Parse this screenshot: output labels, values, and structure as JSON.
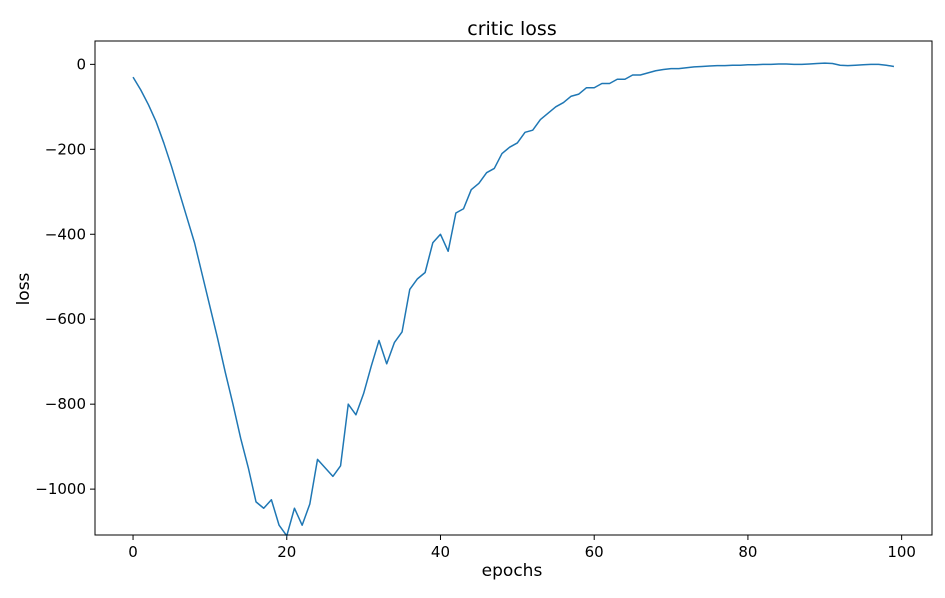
{
  "chart_data": {
    "type": "line",
    "title": "critic loss",
    "xlabel": "epochs",
    "ylabel": "loss",
    "xlim": [
      -4.95,
      103.95
    ],
    "ylim": [
      -1108,
      55
    ],
    "xticks": [
      0,
      20,
      40,
      60,
      80,
      100
    ],
    "yticks": [
      0,
      -200,
      -400,
      -600,
      -800,
      -1000
    ],
    "xtick_labels": [
      "0",
      "20",
      "40",
      "60",
      "80",
      "100"
    ],
    "ytick_labels": [
      "0",
      "−200",
      "−400",
      "−600",
      "−800",
      "−1000"
    ],
    "grid": false,
    "legend": "none",
    "line_color": "#1f77b4",
    "series": [
      {
        "x": [
          0,
          1,
          2,
          3,
          4,
          5,
          6,
          7,
          8,
          9,
          10,
          11,
          12,
          13,
          14,
          15,
          16,
          17,
          18,
          19,
          20,
          21,
          22,
          23,
          24,
          25,
          26,
          27,
          28,
          29,
          30,
          31,
          32,
          33,
          34,
          35,
          36,
          37,
          38,
          39,
          40,
          41,
          42,
          43,
          44,
          45,
          46,
          47,
          48,
          49,
          50,
          51,
          52,
          53,
          54,
          55,
          56,
          57,
          58,
          59,
          60,
          61,
          62,
          63,
          64,
          65,
          66,
          67,
          68,
          69,
          70,
          71,
          72,
          73,
          74,
          75,
          76,
          77,
          78,
          79,
          80,
          81,
          82,
          83,
          84,
          85,
          86,
          87,
          88,
          89,
          90,
          91,
          92,
          93,
          94,
          95,
          96,
          97,
          98,
          99
        ],
        "values": [
          -30,
          -60,
          -95,
          -135,
          -185,
          -240,
          -300,
          -360,
          -420,
          -495,
          -570,
          -645,
          -725,
          -800,
          -880,
          -950,
          -1030,
          -1045,
          -1025,
          -1085,
          -1110,
          -1045,
          -1085,
          -1035,
          -930,
          -950,
          -970,
          -945,
          -800,
          -825,
          -775,
          -710,
          -650,
          -705,
          -655,
          -630,
          -530,
          -505,
          -490,
          -420,
          -400,
          -440,
          -350,
          -340,
          -295,
          -280,
          -255,
          -245,
          -210,
          -195,
          -185,
          -160,
          -155,
          -130,
          -115,
          -100,
          -90,
          -75,
          -70,
          -55,
          -55,
          -45,
          -45,
          -35,
          -35,
          -25,
          -25,
          -20,
          -15,
          -12,
          -10,
          -10,
          -8,
          -6,
          -5,
          -4,
          -3,
          -3,
          -2,
          -2,
          -1,
          -1,
          0,
          0,
          1,
          1,
          0,
          0,
          1,
          2,
          3,
          2,
          -2,
          -3,
          -2,
          -1,
          0,
          0,
          -2,
          -5
        ]
      }
    ]
  }
}
